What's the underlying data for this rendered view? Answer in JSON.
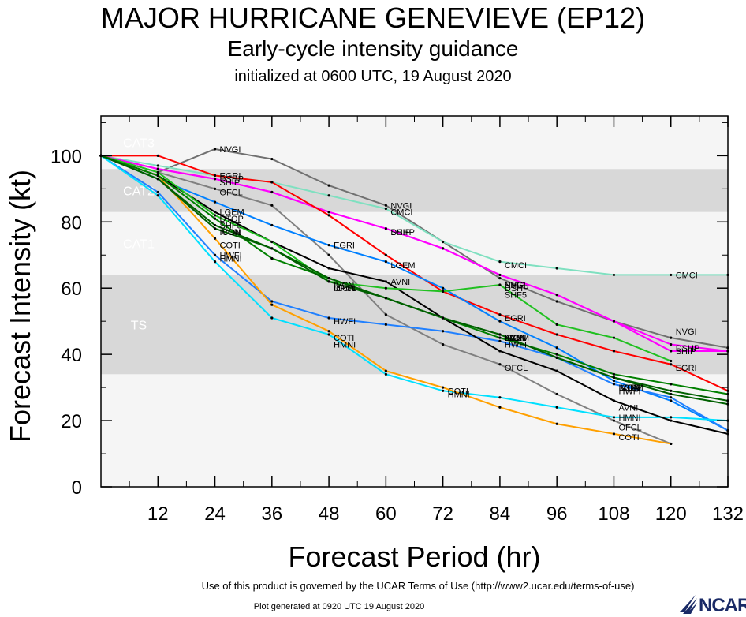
{
  "chart_data": {
    "type": "line",
    "title": "MAJOR HURRICANE GENEVIEVE (EP12)",
    "subtitle": "Early-cycle intensity guidance",
    "subtitle2": "initialized at 0600 UTC, 19 August 2020",
    "xlabel": "Forecast Period (hr)",
    "ylabel": "Forecast Intensity (kt)",
    "xlim": [
      0,
      132
    ],
    "ylim": [
      0,
      112
    ],
    "xticks": [
      12,
      24,
      36,
      48,
      60,
      72,
      84,
      96,
      108,
      120,
      132
    ],
    "yticks": [
      0,
      20,
      40,
      60,
      80,
      100
    ],
    "bands": [
      {
        "label": "TS",
        "y0": 34,
        "y1": 64,
        "color": "#d8d8d8"
      },
      {
        "label": "CAT1",
        "y0": 64,
        "y1": 83,
        "color": "#f5f5f5"
      },
      {
        "label": "CAT2",
        "y0": 83,
        "y1": 96,
        "color": "#d8d8d8"
      },
      {
        "label": "CAT3",
        "y0": 96,
        "y1": 112,
        "color": "#f5f5f5"
      }
    ],
    "below_band_color": "#f5f5f5",
    "series": [
      {
        "name": "NVGI",
        "color": "#707070",
        "x": [
          0,
          12,
          24,
          36,
          48,
          60,
          72,
          84,
          96,
          108,
          120,
          132
        ],
        "y": [
          100,
          95,
          102,
          99,
          91,
          85,
          74,
          63,
          56,
          50,
          45,
          42
        ],
        "labels": [
          {
            "x": 24,
            "y": 102,
            "text": "NVGI"
          },
          {
            "x": 60,
            "y": 85,
            "text": "NVGI"
          },
          {
            "x": 84,
            "y": 61,
            "text": "NVGI"
          },
          {
            "x": 120,
            "y": 47,
            "text": "NVGI"
          }
        ]
      },
      {
        "name": "CMCI",
        "color": "#7fe0c0",
        "x": [
          0,
          12,
          24,
          36,
          48,
          60,
          72,
          84,
          96,
          108,
          120,
          132
        ],
        "y": [
          100,
          97,
          94,
          92,
          88,
          84,
          74,
          68,
          66,
          64,
          64,
          64
        ],
        "labels": [
          {
            "x": 60,
            "y": 83,
            "text": "CMCI"
          },
          {
            "x": 84,
            "y": 67,
            "text": "CMCI"
          },
          {
            "x": 120,
            "y": 64,
            "text": "CMCI"
          }
        ]
      },
      {
        "name": "SHIP",
        "color": "#ff00ff",
        "x": [
          0,
          12,
          24,
          36,
          48,
          60,
          72,
          84,
          96,
          108,
          120,
          132
        ],
        "y": [
          100,
          96,
          93,
          89,
          83,
          78,
          72,
          64,
          58,
          50,
          41,
          41
        ],
        "labels": [
          {
            "x": 24,
            "y": 92,
            "text": "SHIP"
          },
          {
            "x": 60,
            "y": 77,
            "text": "SHIP"
          },
          {
            "x": 84,
            "y": 61,
            "text": "SHIP"
          },
          {
            "x": 120,
            "y": 41,
            "text": "SHIP"
          }
        ]
      },
      {
        "name": "DSHP",
        "color": "#ff00ff",
        "x": [
          0,
          12,
          24,
          36,
          48,
          60,
          72,
          84,
          96,
          108,
          120,
          132
        ],
        "y": [
          100,
          96,
          93,
          89,
          83,
          78,
          72,
          64,
          58,
          50,
          43,
          41
        ],
        "labels": [
          {
            "x": 24,
            "y": 93,
            "text": "DSHP"
          },
          {
            "x": 60,
            "y": 77,
            "text": "DSHP"
          },
          {
            "x": 84,
            "y": 60,
            "text": "DSHP"
          },
          {
            "x": 120,
            "y": 42,
            "text": "DSHP"
          }
        ]
      },
      {
        "name": "EGRI",
        "color": "#ff0000",
        "x": [
          0,
          12,
          24,
          36,
          48,
          60,
          72,
          84,
          96,
          108,
          120,
          132
        ],
        "y": [
          100,
          100,
          94,
          92,
          82,
          70,
          59,
          52,
          46,
          41,
          37,
          29
        ],
        "labels": [
          {
            "x": 24,
            "y": 94,
            "text": "EGRI"
          },
          {
            "x": 48,
            "y": 73,
            "text": "EGRI"
          },
          {
            "x": 84,
            "y": 51,
            "text": "EGRI"
          },
          {
            "x": 120,
            "y": 36,
            "text": "EGRI"
          }
        ]
      },
      {
        "name": "OFCL",
        "color": "#808080",
        "x": [
          0,
          12,
          24,
          36,
          48,
          60,
          72,
          84,
          96,
          108,
          120
        ],
        "y": [
          100,
          95,
          90,
          85,
          70,
          52,
          43,
          37,
          28,
          20,
          13
        ],
        "labels": [
          {
            "x": 24,
            "y": 89,
            "text": "OFCL"
          },
          {
            "x": 48,
            "y": 60,
            "text": "OFCL"
          },
          {
            "x": 84,
            "y": 36,
            "text": "OFCL"
          },
          {
            "x": 108,
            "y": 18,
            "text": "OFCL"
          }
        ]
      },
      {
        "name": "LGEM",
        "color": "#0080ff",
        "x": [
          0,
          12,
          24,
          36,
          48,
          60,
          72,
          84,
          96,
          108,
          120,
          132
        ],
        "y": [
          100,
          93,
          86,
          79,
          73,
          68,
          60,
          50,
          42,
          32,
          26,
          17
        ],
        "labels": [
          {
            "x": 24,
            "y": 83,
            "text": "LGEM"
          },
          {
            "x": 60,
            "y": 67,
            "text": "LGEM"
          },
          {
            "x": 84,
            "y": 45,
            "text": "LGEM"
          },
          {
            "x": 108,
            "y": 30,
            "text": "LGEM"
          }
        ]
      },
      {
        "name": "HWFI",
        "color": "#2080ff",
        "x": [
          0,
          12,
          24,
          36,
          48,
          60,
          72,
          84,
          96,
          108,
          120,
          132
        ],
        "y": [
          100,
          89,
          70,
          56,
          51,
          49,
          47,
          44,
          39,
          31,
          27,
          17
        ],
        "labels": [
          {
            "x": 24,
            "y": 70,
            "text": "HWFI"
          },
          {
            "x": 48,
            "y": 50,
            "text": "HWFI"
          },
          {
            "x": 84,
            "y": 43,
            "text": "HWFI"
          },
          {
            "x": 108,
            "y": 29,
            "text": "HWFI"
          }
        ]
      },
      {
        "name": "HMNI",
        "color": "#00e0ff",
        "x": [
          0,
          12,
          24,
          36,
          48,
          60,
          72,
          84,
          96,
          108,
          120,
          132
        ],
        "y": [
          100,
          88,
          68,
          51,
          46,
          34,
          29,
          27,
          24,
          21,
          21,
          20
        ],
        "labels": [
          {
            "x": 24,
            "y": 69,
            "text": "HMNI"
          },
          {
            "x": 48,
            "y": 43,
            "text": "HMNI"
          },
          {
            "x": 72,
            "y": 28,
            "text": "HMNI"
          },
          {
            "x": 108,
            "y": 21,
            "text": "HMNI"
          }
        ]
      },
      {
        "name": "COTI",
        "color": "#ffa000",
        "x": [
          0,
          12,
          24,
          36,
          48,
          60,
          72,
          84,
          96,
          108,
          120
        ],
        "y": [
          100,
          94,
          75,
          55,
          47,
          35,
          30,
          24,
          19,
          16,
          13
        ],
        "labels": [
          {
            "x": 24,
            "y": 73,
            "text": "COTI"
          },
          {
            "x": 48,
            "y": 45,
            "text": "COTI"
          },
          {
            "x": 72,
            "y": 29,
            "text": "COTI"
          },
          {
            "x": 108,
            "y": 15,
            "text": "COTI"
          }
        ]
      },
      {
        "name": "AVNI",
        "color": "#000000",
        "x": [
          0,
          12,
          24,
          36,
          48,
          60,
          72,
          84,
          96,
          108,
          120,
          132
        ],
        "y": [
          100,
          94,
          83,
          74,
          66,
          62,
          51,
          41,
          35,
          26,
          20,
          16
        ],
        "labels": [
          {
            "x": 60,
            "y": 62,
            "text": "AVNI"
          },
          {
            "x": 84,
            "y": 45,
            "text": "AVNI"
          },
          {
            "x": 108,
            "y": 24,
            "text": "AVNI"
          }
        ]
      },
      {
        "name": "SHF5",
        "color": "#20c020",
        "x": [
          0,
          12,
          24,
          36,
          48,
          60,
          72,
          84,
          96,
          108,
          120
        ],
        "y": [
          100,
          95,
          82,
          74,
          62,
          60,
          59,
          61,
          49,
          45,
          38
        ],
        "labels": [
          {
            "x": 24,
            "y": 79,
            "text": "SHF5"
          },
          {
            "x": 84,
            "y": 58,
            "text": "SHF5"
          }
        ]
      },
      {
        "name": "DTOP",
        "color": "#008000",
        "x": [
          0,
          12,
          24,
          36,
          48,
          60,
          72,
          84,
          96,
          108,
          120,
          132
        ],
        "y": [
          100,
          94,
          81,
          69,
          63,
          57,
          51,
          45,
          40,
          34,
          31,
          28
        ],
        "labels": [
          {
            "x": 24,
            "y": 81,
            "text": "DTOP"
          }
        ]
      },
      {
        "name": "ICON",
        "color": "#006000",
        "x": [
          0,
          12,
          24,
          36,
          48,
          60,
          72,
          84,
          96,
          108,
          120,
          132
        ],
        "y": [
          100,
          93,
          78,
          72,
          62,
          57,
          51,
          46,
          39,
          33,
          28,
          25
        ],
        "labels": [
          {
            "x": 24,
            "y": 77,
            "text": "ICON"
          },
          {
            "x": 48,
            "y": 60,
            "text": "ICON"
          },
          {
            "x": 84,
            "y": 45,
            "text": "ICON"
          },
          {
            "x": 108,
            "y": 30,
            "text": "ICON"
          }
        ]
      },
      {
        "name": "IVCN",
        "color": "#006000",
        "x": [
          0,
          12,
          24,
          36,
          48,
          60,
          72,
          84,
          96,
          108,
          120,
          132
        ],
        "y": [
          100,
          93,
          79,
          72,
          63,
          57,
          51,
          46,
          39,
          33,
          29,
          26
        ],
        "labels": [
          {
            "x": 24,
            "y": 77,
            "text": "IVCN"
          },
          {
            "x": 48,
            "y": 61,
            "text": "IVCN"
          },
          {
            "x": 84,
            "y": 45,
            "text": "IVCN"
          },
          {
            "x": 108,
            "y": 30,
            "text": "IVCN"
          }
        ]
      }
    ]
  },
  "footer": {
    "terms": "Use of this product is governed by the UCAR Terms of Use (http://www2.ucar.edu/terms-of-use)",
    "generated": "Plot generated at 0920 UTC   19 August 2020",
    "logo": "NCAR"
  }
}
